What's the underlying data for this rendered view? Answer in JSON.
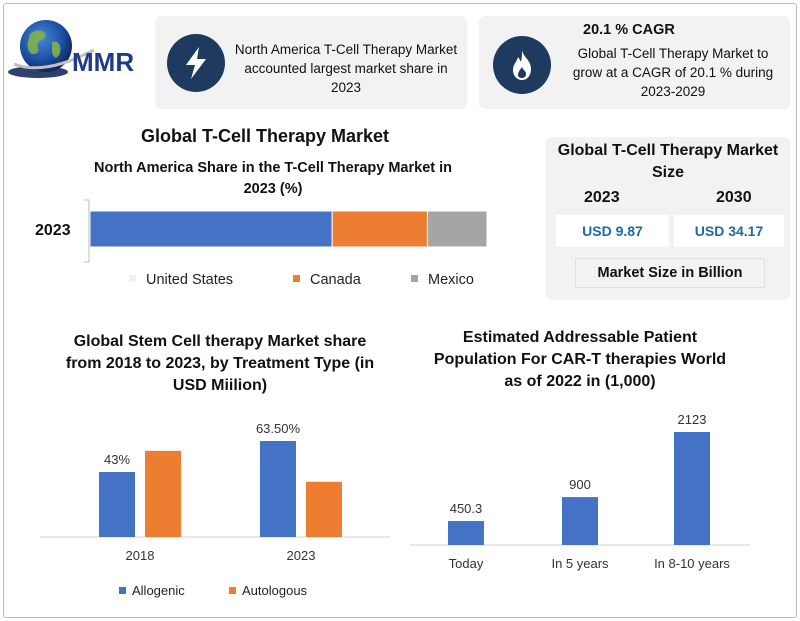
{
  "logo": {
    "text": "MMR"
  },
  "card_north_america": {
    "icon": "lightning-bolt-icon",
    "text": "North America T-Cell Therapy Market accounted largest market share in 2023"
  },
  "card_cagr": {
    "icon": "flame-icon",
    "heading": "20.1 % CAGR",
    "text": "Global T-Cell Therapy Market to grow at a CAGR of 20.1 % during 2023-2029"
  },
  "main_title": "Global T-Cell Therapy Market",
  "market_size": {
    "title": "Global T-Cell Therapy Market Size",
    "year_start": "2023",
    "year_end": "2030",
    "value_start": "USD 9.87",
    "value_end": "USD 34.17",
    "footer": "Market Size in Billion"
  },
  "colors": {
    "blue": "#4472c4",
    "orange": "#ed7d31",
    "gray": "#a5a5a5",
    "value_blue": "#1a6aa6",
    "navy": "#1f3a5f"
  },
  "chart_data": [
    {
      "type": "bar",
      "orientation": "horizontal-stacked",
      "title": "North America Share in the T-Cell Therapy Market in 2023 (%)",
      "categories": [
        "2023"
      ],
      "series": [
        {
          "name": "United States",
          "values": [
            61
          ]
        },
        {
          "name": "Canada",
          "values": [
            24
          ]
        },
        {
          "name": "Mexico",
          "values": [
            15
          ]
        }
      ],
      "legend": "bottom"
    },
    {
      "type": "bar",
      "title": "Global Stem Cell therapy Market share from 2018 to 2023, by Treatment Type (in USD Miilion)",
      "categories": [
        "2018",
        "2023"
      ],
      "series": [
        {
          "name": "Allogenic",
          "values": [
            43,
            63.5
          ]
        },
        {
          "name": "Autologous",
          "values": [
            57,
            36.5
          ]
        }
      ],
      "data_labels": [
        "43%",
        "63.50%"
      ],
      "legend": "bottom"
    },
    {
      "type": "bar",
      "title": "Estimated Addressable Patient Population For CAR-T therapies World as of 2022 in (1,000)",
      "categories": [
        "Today",
        "In 5 years",
        "In 8-10 years"
      ],
      "values": [
        450.3,
        900,
        2123
      ],
      "data_labels": [
        "450.3",
        "900",
        "2123"
      ]
    }
  ]
}
